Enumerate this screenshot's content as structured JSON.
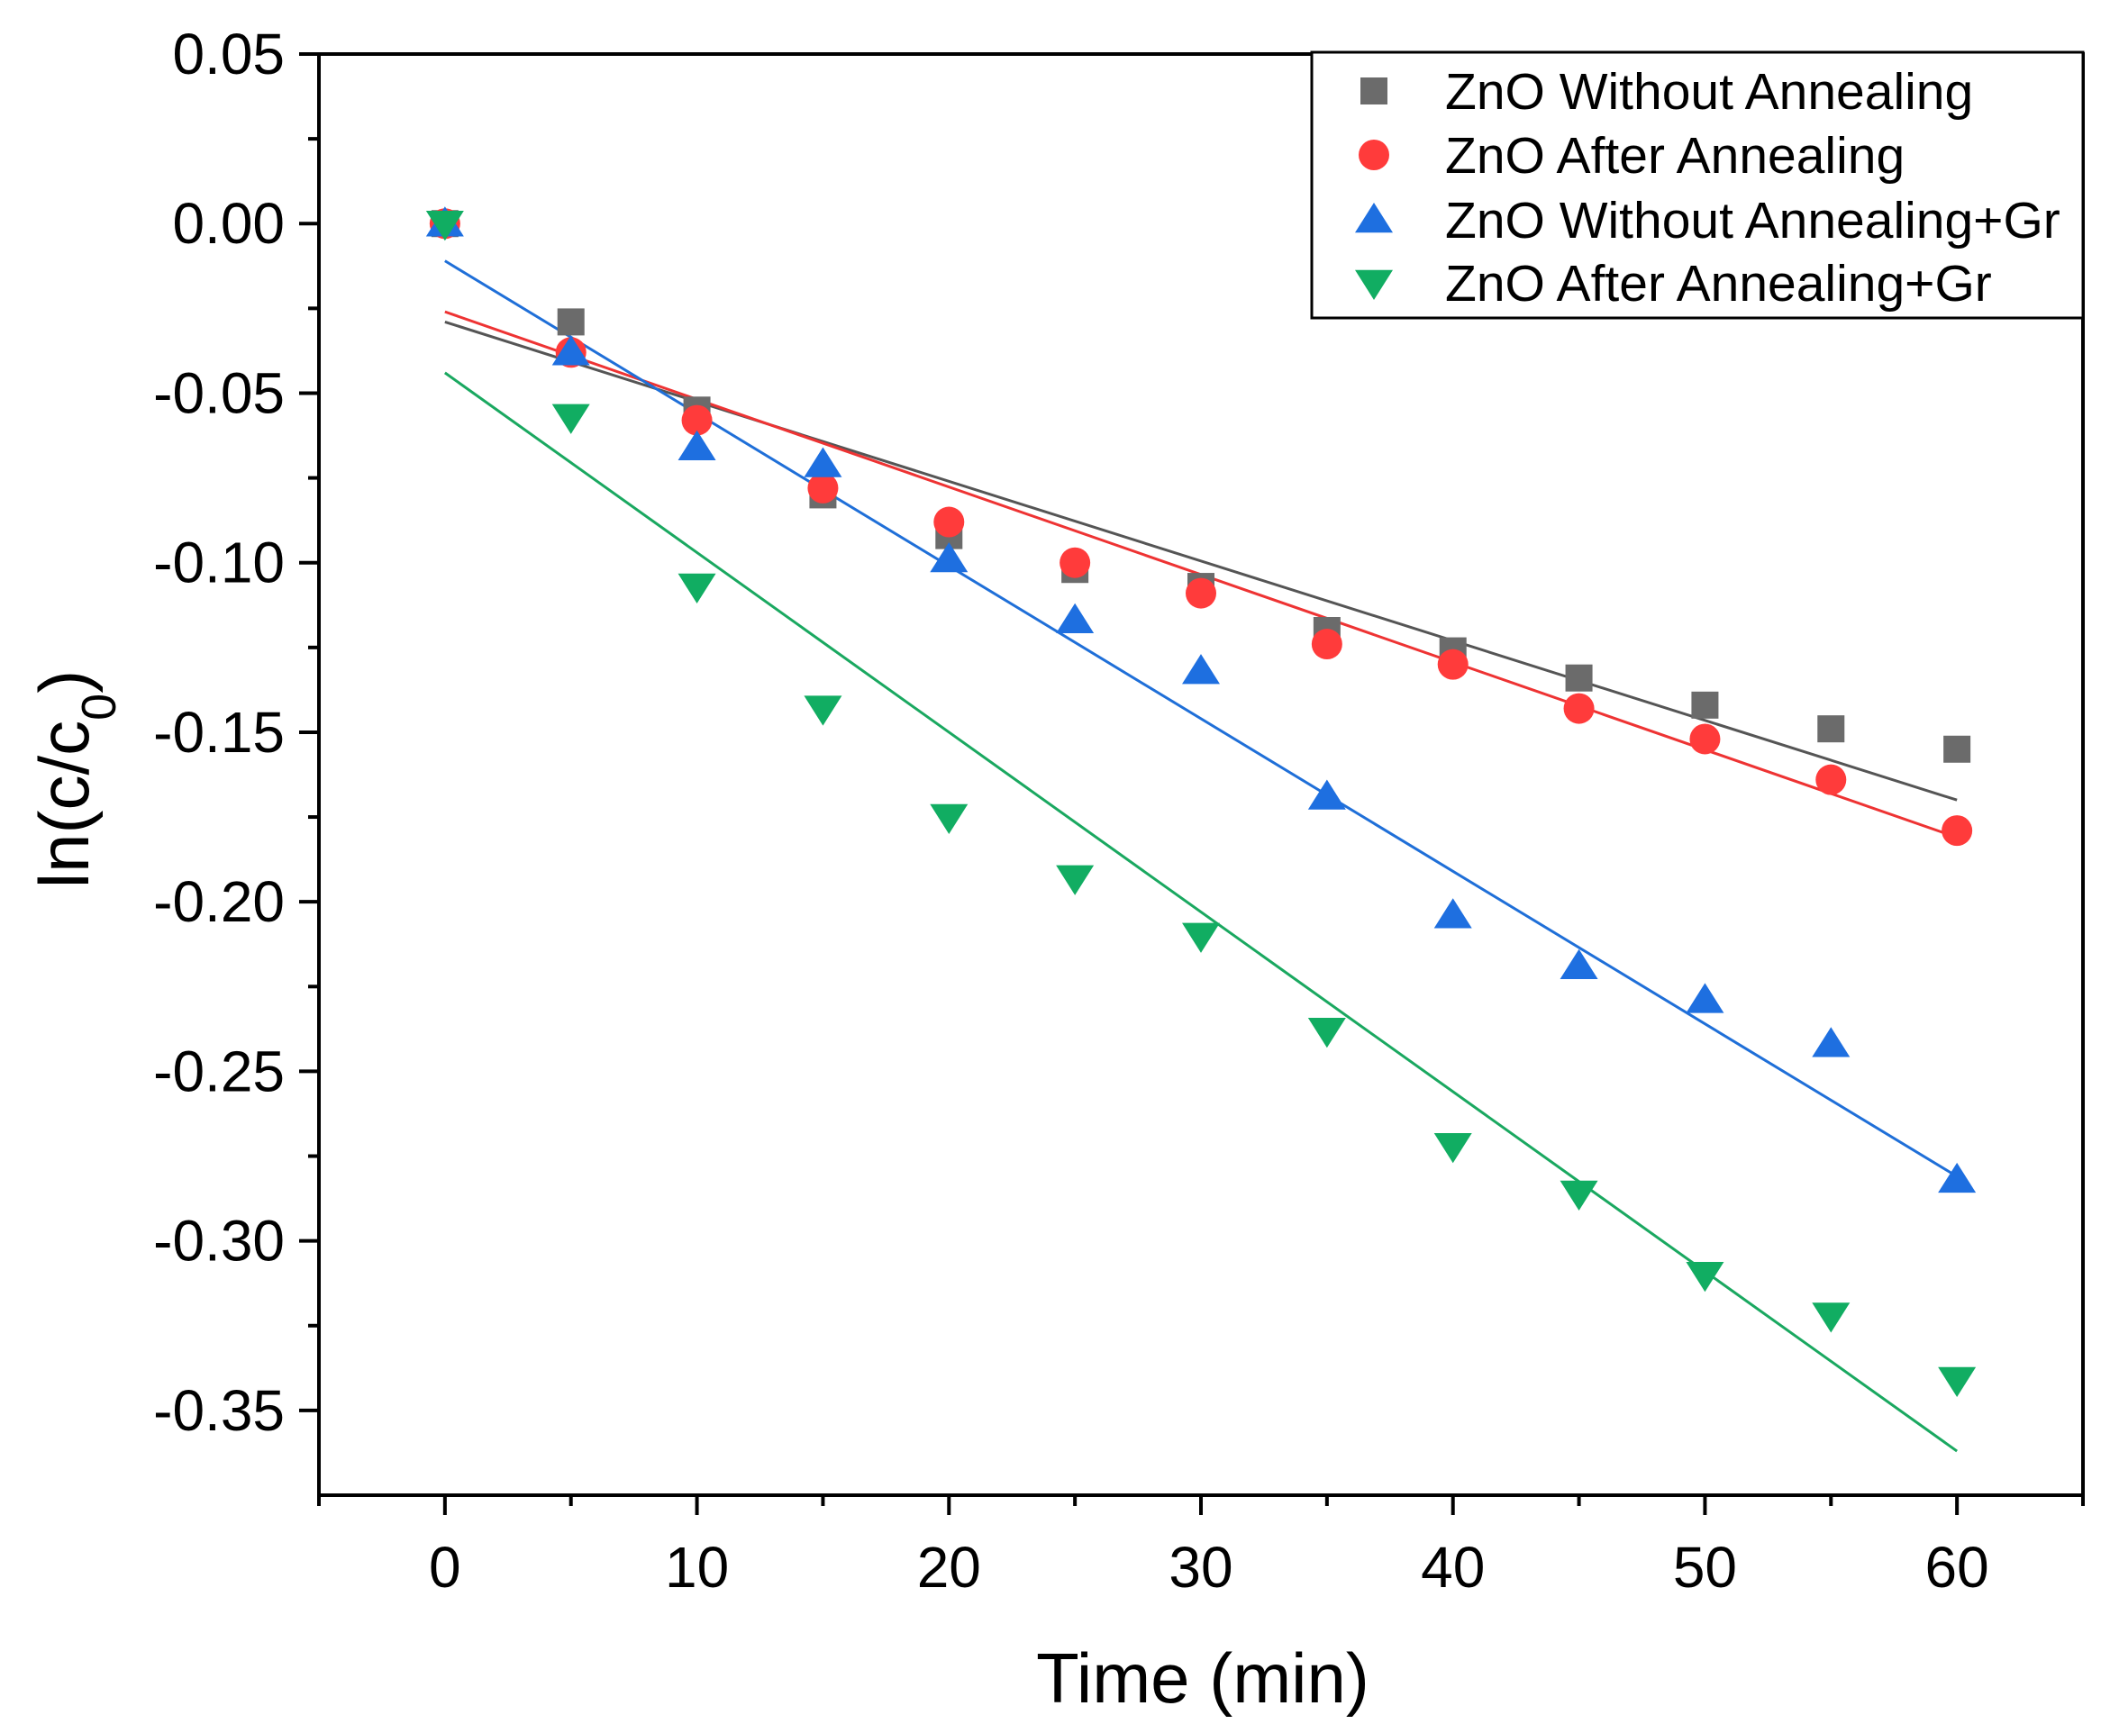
{
  "chart_data": {
    "type": "scatter",
    "title": "",
    "xlabel": "Time (min)",
    "ylabel_main": "ln(c/c",
    "ylabel_sub": "0",
    "ylabel_close": ")",
    "xlim": [
      -5,
      65
    ],
    "ylim": [
      -0.375,
      0.05
    ],
    "x_ticks": [
      0,
      10,
      20,
      30,
      40,
      50,
      60
    ],
    "x_tick_labels": [
      "0",
      "10",
      "20",
      "30",
      "40",
      "50",
      "60"
    ],
    "y_ticks": [
      0.05,
      0.0,
      -0.05,
      -0.1,
      -0.15,
      -0.2,
      -0.25,
      -0.3,
      -0.35
    ],
    "y_tick_labels": [
      "0.05",
      "0.00",
      "-0.05",
      "-0.10",
      "-0.15",
      "-0.20",
      "-0.25",
      "-0.30",
      "-0.35"
    ],
    "legend_position": "top-right",
    "x": [
      0,
      5,
      10,
      15,
      20,
      25,
      30,
      35,
      40,
      45,
      50,
      55,
      60
    ],
    "series": [
      {
        "name": "ZnO Without Annealing",
        "marker": "square",
        "color": "#6b6b6b",
        "line_color": "#555555",
        "values": [
          0.0,
          -0.029,
          -0.055,
          -0.08,
          -0.092,
          -0.102,
          -0.107,
          -0.12,
          -0.126,
          -0.134,
          -0.142,
          -0.149,
          -0.155
        ],
        "fit": [
          -0.029,
          -0.17
        ]
      },
      {
        "name": "ZnO After Annealing",
        "marker": "circle",
        "color": "#ff3b3b",
        "line_color": "#ee3333",
        "values": [
          0.0,
          -0.038,
          -0.058,
          -0.078,
          -0.088,
          -0.1,
          -0.109,
          -0.124,
          -0.13,
          -0.143,
          -0.152,
          -0.164,
          -0.179
        ],
        "fit": [
          -0.026,
          -0.181
        ]
      },
      {
        "name": "ZnO Without Annealing+Gr",
        "marker": "triangle-up",
        "color": "#1e6fe0",
        "line_color": "#1f6fd8",
        "values": [
          0.0,
          -0.038,
          -0.066,
          -0.071,
          -0.099,
          -0.117,
          -0.132,
          -0.169,
          -0.204,
          -0.219,
          -0.229,
          -0.242,
          -0.282
        ],
        "fit": [
          -0.011,
          -0.281
        ]
      },
      {
        "name": "ZnO After Annealing+Gr",
        "marker": "triangle-down",
        "color": "#11ad62",
        "line_color": "#1aa860",
        "values": [
          0.0,
          -0.057,
          -0.107,
          -0.143,
          -0.175,
          -0.193,
          -0.21,
          -0.238,
          -0.272,
          -0.286,
          -0.31,
          -0.322,
          -0.341
        ],
        "fit": [
          -0.044,
          -0.362
        ]
      }
    ]
  }
}
